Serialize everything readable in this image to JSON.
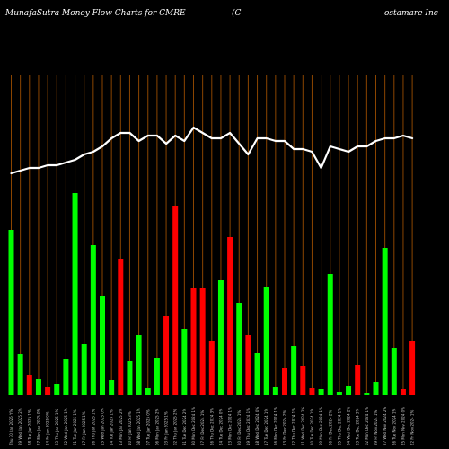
{
  "header": {
    "title": "MunafaSutra  Money Flow  Charts for CMRE",
    "company_open": "(C",
    "company_rest": "ostamare   Inc"
  },
  "colors": {
    "background": "#000000",
    "up": "#00ff00",
    "down": "#ff0000",
    "grid": "#8b4500",
    "line": "#ffffff"
  },
  "chart_data": {
    "type": "bar",
    "title": "MunafaSutra  Money Flow  Charts for CMRE",
    "series": [
      {
        "name": "money-flow",
        "values": [
          184,
          46,
          22,
          18,
          9,
          12,
          40,
          225,
          57,
          167,
          110,
          17,
          152,
          38,
          67,
          8,
          41,
          88,
          211,
          74,
          119,
          119,
          60,
          128,
          176,
          103,
          67,
          47,
          120,
          9,
          30,
          55,
          32,
          8,
          7,
          135,
          4,
          10,
          33,
          2,
          15,
          164,
          53,
          7,
          60
        ]
      },
      {
        "name": "trend",
        "values": [
          0.73,
          0.72,
          0.71,
          0.71,
          0.7,
          0.7,
          0.69,
          0.68,
          0.66,
          0.65,
          0.63,
          0.6,
          0.58,
          0.58,
          0.61,
          0.59,
          0.59,
          0.62,
          0.59,
          0.61,
          0.56,
          0.58,
          0.6,
          0.6,
          0.58,
          0.62,
          0.66,
          0.6,
          0.6,
          0.61,
          0.61,
          0.64,
          0.64,
          0.65,
          0.71,
          0.63,
          0.64,
          0.65,
          0.63,
          0.63,
          0.61,
          0.6,
          0.6,
          0.59,
          0.6
        ]
      }
    ],
    "directions": [
      "up",
      "up",
      "down",
      "up",
      "down",
      "up",
      "up",
      "up",
      "up",
      "up",
      "up",
      "up",
      "down",
      "up",
      "up",
      "up",
      "up",
      "down",
      "down",
      "up",
      "down",
      "down",
      "down",
      "up",
      "down",
      "up",
      "down",
      "up",
      "up",
      "up",
      "down",
      "up",
      "down",
      "down",
      "up",
      "up",
      "up",
      "up",
      "down",
      "up",
      "up",
      "up",
      "up",
      "down",
      "down"
    ],
    "categories": [
      "Thu 30 Jan 2025 Y%",
      "29 Wed Jan 2025 2%",
      "28 Tue Jan 2025 1%",
      "27 Mon Jan 2025 0%",
      "24 Fri Jan 2025 0%",
      "23 Thu Jan 2025 1%",
      "22 Wed Jan 2025 1%",
      "21 Tue Jan 2025 1%",
      "17 Fri Jan 2025 1%",
      "16 Thu Jan 2025 1%",
      "15 Wed Jan 2025 0%",
      "14 Tue Jan 2025 1%",
      "13 Mon Jan 2025 2%",
      "10 Fri Jan 2025 3%",
      "08 Wed Jan 2025 1%",
      "07 Tue Jan 2025 0%",
      "06 Mon Jan 2025 2%",
      "03 Fri Jan 2025 1%",
      "02 Thu Jan 2025 2%",
      "31 Tue Dec 2024 2%",
      "30 Mon Dec 2024 1%",
      "27 Fri Dec 2024 1%",
      "26 Thu Dec 2024 3%",
      "24 Tue Dec 2024 0%",
      "23 Mon Dec 2024 1%",
      "20 Fri Dec 2024 1%",
      "19 Thu Dec 2024 1%",
      "18 Wed Dec 2024 0%",
      "17 Tue Dec 2024 1%",
      "16 Mon Dec 2024 1%",
      "13 Fri Dec 2024 2%",
      "12 Thu Dec 2024 1%",
      "11 Wed Dec 2024 2%",
      "10 Tue Dec 2024 1%",
      "09 Mon Dec 2024 1%",
      "06 Fri Dec 2024 2%",
      "05 Thu Dec 2024 1%",
      "04 Wed Dec 2024 2%",
      "03 Tue Dec 2024 3%",
      "02 Mon Dec 2024 1%",
      "29 Fri Nov 2024 1%",
      "27 Wed Nov 2024 2%",
      "26 Tue Nov 2024 1%",
      "25 Mon Nov 2024 0%",
      "22 Fri Nov 2024 1%"
    ],
    "grid": true,
    "legend": "none"
  }
}
